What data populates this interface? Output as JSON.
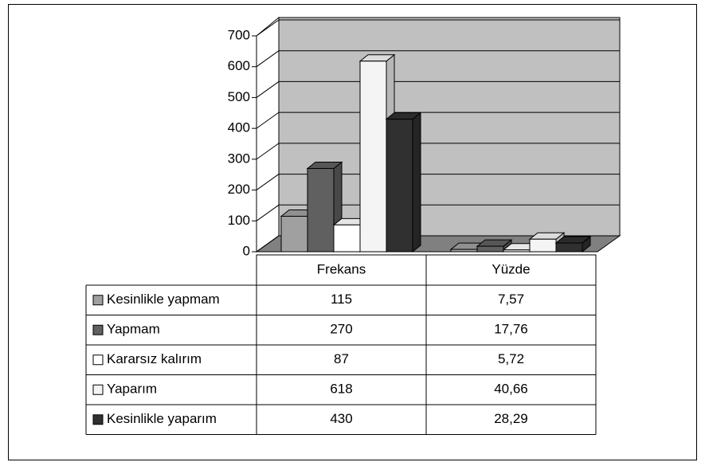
{
  "chart_data": {
    "type": "bar3d",
    "categories": [
      "Frekans",
      "Yüzde"
    ],
    "series": [
      {
        "name": "Kesinlikle yapmam",
        "color": "#a0a0a0",
        "values": [
          115,
          7.57
        ],
        "value_labels": [
          "115",
          "7,57"
        ]
      },
      {
        "name": "Yapmam",
        "color": "#606060",
        "values": [
          270,
          17.76
        ],
        "value_labels": [
          "270",
          "17,76"
        ]
      },
      {
        "name": "Kararsız kalırım",
        "color": "#ffffff",
        "values": [
          87,
          5.72
        ],
        "value_labels": [
          "87",
          "5,72"
        ]
      },
      {
        "name": "Yaparım",
        "color": "#f4f4f4",
        "values": [
          618,
          40.66
        ],
        "value_labels": [
          "618",
          "40,66"
        ]
      },
      {
        "name": "Kesinlikle yaparım",
        "color": "#303030",
        "values": [
          430,
          28.29
        ],
        "value_labels": [
          "430",
          "28,29"
        ]
      }
    ],
    "ylim": [
      0,
      700
    ],
    "yticks": [
      0,
      100,
      200,
      300,
      400,
      500,
      600,
      700
    ],
    "grid": true
  }
}
